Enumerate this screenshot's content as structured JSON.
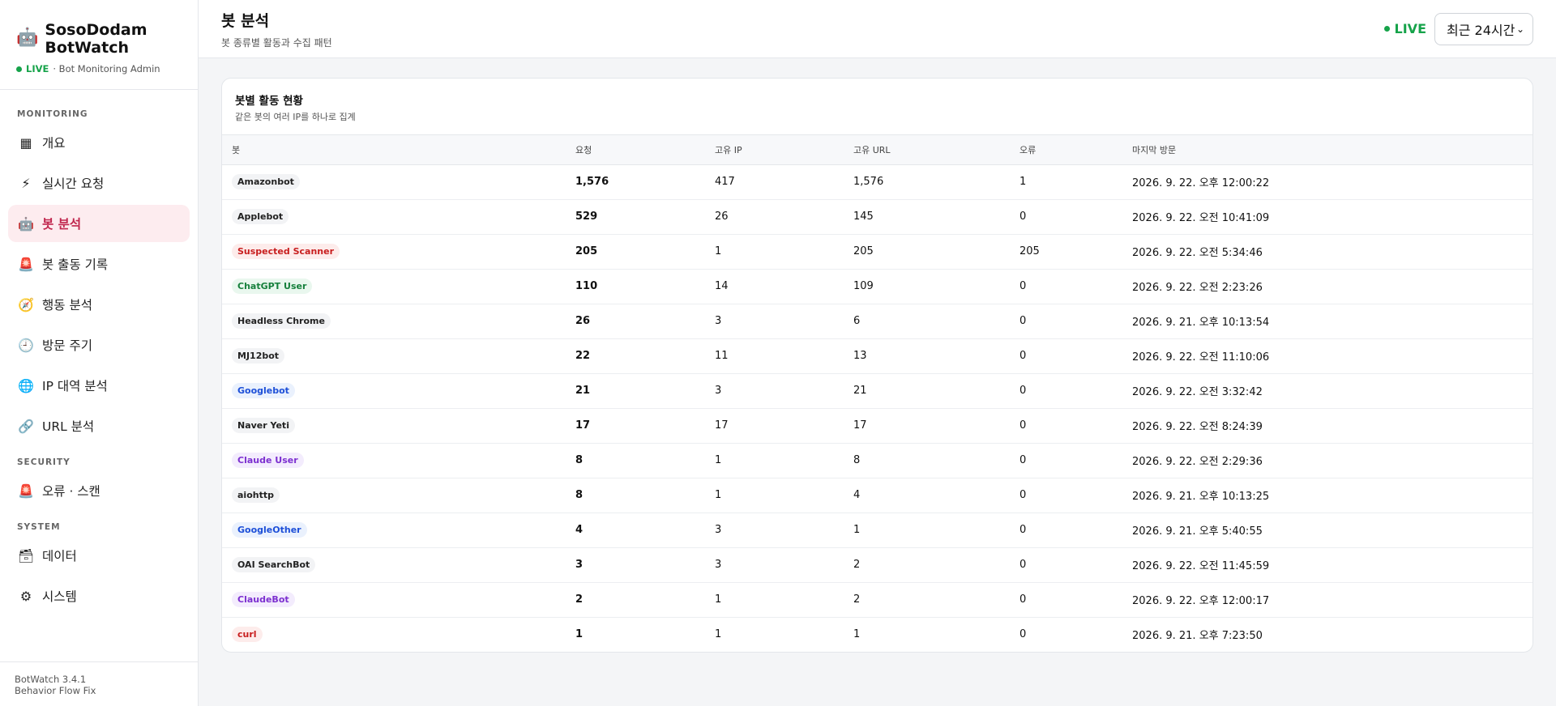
{
  "brand": {
    "logo_icon": "robot-icon",
    "title": "SosoDodam BotWatch",
    "live": "LIVE",
    "subtitle": "· Bot Monitoring Admin"
  },
  "sidebar": {
    "sections": {
      "monitoring": "MONITORING",
      "security": "SECURITY",
      "system": "SYSTEM"
    },
    "items": [
      {
        "label": "개요",
        "icon": "▦",
        "icon_name": "grid-icon"
      },
      {
        "label": "실시간 요청",
        "icon": "⚡",
        "icon_name": "lightning-icon"
      },
      {
        "label": "봇 분석",
        "icon": "🤖",
        "icon_name": "robot-icon"
      },
      {
        "label": "봇 출동 기록",
        "icon": "🚨",
        "icon_name": "siren-icon"
      },
      {
        "label": "행동 분석",
        "icon": "🧭",
        "icon_name": "compass-icon"
      },
      {
        "label": "방문 주기",
        "icon": "🕘",
        "icon_name": "clock-icon"
      },
      {
        "label": "IP 대역 분석",
        "icon": "🌐",
        "icon_name": "globe-icon"
      },
      {
        "label": "URL 분석",
        "icon": "🔗",
        "icon_name": "link-icon"
      },
      {
        "label": "오류 · 스캔",
        "icon": "🚨",
        "icon_name": "siren-icon"
      },
      {
        "label": "데이터",
        "icon": "🗃",
        "icon_name": "database-icon"
      },
      {
        "label": "시스템",
        "icon": "⚙",
        "icon_name": "gear-icon"
      }
    ],
    "active_index": 2,
    "footer_version": "BotWatch 3.4.1",
    "footer_note": "Behavior Flow Fix"
  },
  "header": {
    "title": "봇 분석",
    "subtitle": "봇 종류별 활동과 수집 패턴",
    "live": "LIVE",
    "range_selected": "최근 24시간"
  },
  "card": {
    "title": "봇별 활동 현황",
    "subtitle": "같은 봇의 여러 IP를 하나로 집계",
    "columns": [
      "봇",
      "요청",
      "고유 IP",
      "고유 URL",
      "오류",
      "마지막 방문"
    ],
    "rows": [
      {
        "bot": "Amazonbot",
        "tone": "gray",
        "requests": "1,576",
        "ips": "417",
        "urls": "1,576",
        "errors": "1",
        "last": "2026. 9. 22. 오후 12:00:22"
      },
      {
        "bot": "Applebot",
        "tone": "gray",
        "requests": "529",
        "ips": "26",
        "urls": "145",
        "errors": "0",
        "last": "2026. 9. 22. 오전 10:41:09"
      },
      {
        "bot": "Suspected Scanner",
        "tone": "red",
        "requests": "205",
        "ips": "1",
        "urls": "205",
        "errors": "205",
        "last": "2026. 9. 22. 오전 5:34:46"
      },
      {
        "bot": "ChatGPT User",
        "tone": "green",
        "requests": "110",
        "ips": "14",
        "urls": "109",
        "errors": "0",
        "last": "2026. 9. 22. 오전 2:23:26"
      },
      {
        "bot": "Headless Chrome",
        "tone": "gray",
        "requests": "26",
        "ips": "3",
        "urls": "6",
        "errors": "0",
        "last": "2026. 9. 21. 오후 10:13:54"
      },
      {
        "bot": "MJ12bot",
        "tone": "gray",
        "requests": "22",
        "ips": "11",
        "urls": "13",
        "errors": "0",
        "last": "2026. 9. 22. 오전 11:10:06"
      },
      {
        "bot": "Googlebot",
        "tone": "blue",
        "requests": "21",
        "ips": "3",
        "urls": "21",
        "errors": "0",
        "last": "2026. 9. 22. 오전 3:32:42"
      },
      {
        "bot": "Naver Yeti",
        "tone": "gray",
        "requests": "17",
        "ips": "17",
        "urls": "17",
        "errors": "0",
        "last": "2026. 9. 22. 오전 8:24:39"
      },
      {
        "bot": "Claude User",
        "tone": "purple",
        "requests": "8",
        "ips": "1",
        "urls": "8",
        "errors": "0",
        "last": "2026. 9. 22. 오전 2:29:36"
      },
      {
        "bot": "aiohttp",
        "tone": "gray",
        "requests": "8",
        "ips": "1",
        "urls": "4",
        "errors": "0",
        "last": "2026. 9. 21. 오후 10:13:25"
      },
      {
        "bot": "GoogleOther",
        "tone": "blue",
        "requests": "4",
        "ips": "3",
        "urls": "1",
        "errors": "0",
        "last": "2026. 9. 21. 오후 5:40:55"
      },
      {
        "bot": "OAI SearchBot",
        "tone": "gray",
        "requests": "3",
        "ips": "3",
        "urls": "2",
        "errors": "0",
        "last": "2026. 9. 22. 오전 11:45:59"
      },
      {
        "bot": "ClaudeBot",
        "tone": "purple",
        "requests": "2",
        "ips": "1",
        "urls": "2",
        "errors": "0",
        "last": "2026. 9. 22. 오후 12:00:17"
      },
      {
        "bot": "curl",
        "tone": "red",
        "requests": "1",
        "ips": "1",
        "urls": "1",
        "errors": "0",
        "last": "2026. 9. 21. 오후 7:23:50"
      }
    ]
  },
  "colors": {
    "accent": "#c0264d",
    "live": "#16a34a"
  }
}
